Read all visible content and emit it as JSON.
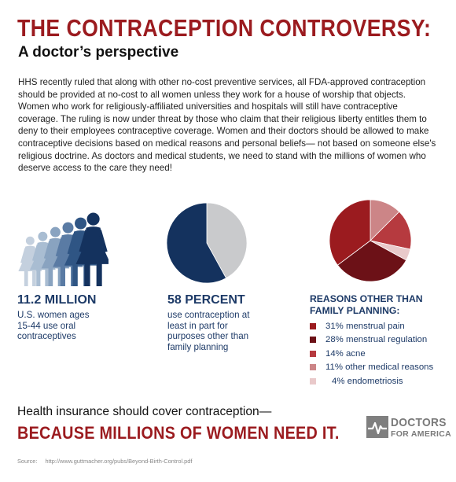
{
  "header": {
    "title": "THE CONTRACEPTION CONTROVERSY:",
    "subtitle": "A doctor’s perspective"
  },
  "intro": "HHS recently ruled that along with other no-cost preventive services, all FDA-approved contraception should be provided at no-cost to all women unless they work for a house of worship that objects. Women who work for religiously-affiliated universities and hospitals will still have contraceptive coverage. The ruling is now under threat by those who claim that their religious liberty entitles them to deny to their employees contraceptive coverage. Women and their doctors should be allowed to make contraceptive decisions based on medical reasons and personal beliefs— not based on someone else's religious doctrine. As doctors and medical students, we need to stand with the millions of women who deserve access to the care they need!",
  "stats": [
    {
      "figure": "11.2 MILLION",
      "description": "U.S. women ages 15-44 use oral contraceptives"
    },
    {
      "figure": "58 PERCENT",
      "description": "use contraception at least in part for purposes other than family planning"
    }
  ],
  "people_colors": [
    "#c4d0de",
    "#a9bdd2",
    "#89a3c0",
    "#5a7ba4",
    "#2f5584",
    "#14325e"
  ],
  "chart_data": [
    {
      "type": "pie",
      "values": [
        58,
        42
      ],
      "colors": [
        "#14325e",
        "#c9cacc"
      ]
    },
    {
      "type": "pie",
      "title": "REASONS OTHER THAN FAMILY PLANNING:",
      "categories": [
        "menstrual pain",
        "menstrual regulation",
        "acne",
        "other medical reasons",
        "endometriosis"
      ],
      "values": [
        31,
        28,
        14,
        11,
        4
      ],
      "percent_labels": [
        "31%",
        "28%",
        "14%",
        "11%",
        "4%"
      ],
      "colors": [
        "#9b1b1f",
        "#6c1117",
        "#b63a3f",
        "#cc8587",
        "#e9c9ca"
      ]
    }
  ],
  "footer": {
    "tagline": "Health insurance should cover contraception—",
    "headline": "BECAUSE MILLIONS OF WOMEN NEED IT.",
    "logo_line1": "DOCTORS",
    "logo_line2": "FOR AMERICA",
    "source_label": "Source:",
    "source_url": "http://www.guttmacher.org/pubs/Beyond-Birth-Control.pdf"
  }
}
